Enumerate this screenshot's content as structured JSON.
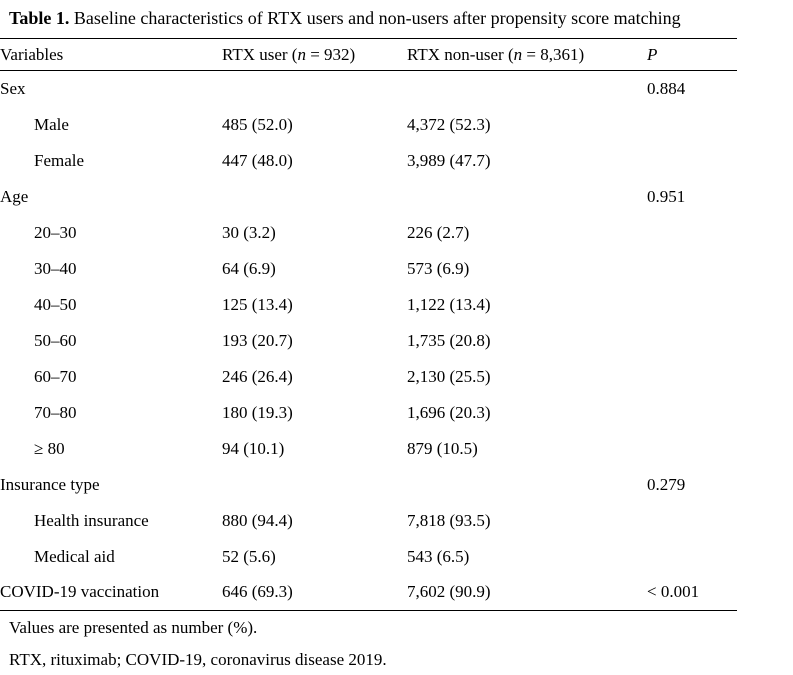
{
  "caption": {
    "label": "Table 1.",
    "text": "Baseline characteristics of RTX users and non-users after propensity score matching"
  },
  "table": {
    "columns": [
      {
        "text": "Variables"
      },
      {
        "prefix": "RTX user (",
        "italic": "n",
        "suffix": " = 932)"
      },
      {
        "prefix": "RTX non-user (",
        "italic": "n",
        "suffix": " = 8,361)"
      },
      {
        "text": "P"
      }
    ],
    "rows": [
      {
        "label": "Sex",
        "rtx_user": "",
        "rtx_non_user": "",
        "p": "0.884"
      },
      {
        "label": "Male",
        "rtx_user": "485 (52.0)",
        "rtx_non_user": "4,372 (52.3)",
        "p": ""
      },
      {
        "label": "Female",
        "rtx_user": "447 (48.0)",
        "rtx_non_user": "3,989 (47.7)",
        "p": ""
      },
      {
        "label": "Age",
        "rtx_user": "",
        "rtx_non_user": "",
        "p": "0.951"
      },
      {
        "label": "20–30",
        "rtx_user": "30 (3.2)",
        "rtx_non_user": "226 (2.7)",
        "p": ""
      },
      {
        "label": "30–40",
        "rtx_user": "64 (6.9)",
        "rtx_non_user": "573 (6.9)",
        "p": ""
      },
      {
        "label": "40–50",
        "rtx_user": "125 (13.4)",
        "rtx_non_user": "1,122 (13.4)",
        "p": ""
      },
      {
        "label": "50–60",
        "rtx_user": "193 (20.7)",
        "rtx_non_user": "1,735 (20.8)",
        "p": ""
      },
      {
        "label": "60–70",
        "rtx_user": "246 (26.4)",
        "rtx_non_user": "2,130 (25.5)",
        "p": ""
      },
      {
        "label": "70–80",
        "rtx_user": "180 (19.3)",
        "rtx_non_user": "1,696 (20.3)",
        "p": ""
      },
      {
        "label": "≥ 80",
        "rtx_user": "94 (10.1)",
        "rtx_non_user": "879 (10.5)",
        "p": ""
      },
      {
        "label": "Insurance type",
        "rtx_user": "",
        "rtx_non_user": "",
        "p": "0.279"
      },
      {
        "label": "Health insurance",
        "rtx_user": "880 (94.4)",
        "rtx_non_user": "7,818 (93.5)",
        "p": ""
      },
      {
        "label": "Medical aid",
        "rtx_user": "52 (5.6)",
        "rtx_non_user": "543 (6.5)",
        "p": ""
      },
      {
        "label": "COVID-19 vaccination",
        "rtx_user": "646 (69.3)",
        "rtx_non_user": "7,602 (90.9)",
        "p": "< 0.001"
      }
    ]
  },
  "footnotes": [
    "Values are presented as number (%).",
    "RTX, rituximab; COVID-19, coronavirus disease 2019."
  ]
}
